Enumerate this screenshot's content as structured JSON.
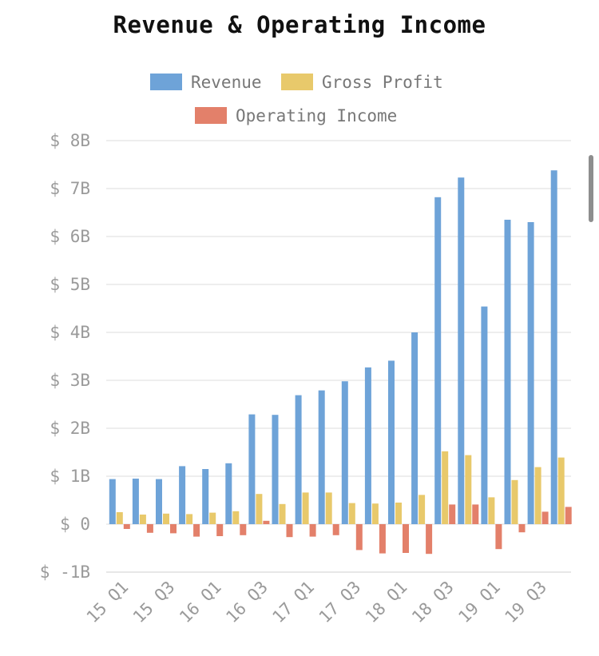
{
  "chart_data": {
    "type": "bar",
    "title": "Revenue & Operating Income",
    "xlabel": "",
    "ylabel": "",
    "ylim": [
      -1,
      8
    ],
    "y_ticks": [
      {
        "value": 8,
        "label": "$ 8B"
      },
      {
        "value": 7,
        "label": "$ 7B"
      },
      {
        "value": 6,
        "label": "$ 6B"
      },
      {
        "value": 5,
        "label": "$ 5B"
      },
      {
        "value": 4,
        "label": "$ 4B"
      },
      {
        "value": 3,
        "label": "$ 3B"
      },
      {
        "value": 2,
        "label": "$ 2B"
      },
      {
        "value": 1,
        "label": "$ 1B"
      },
      {
        "value": 0,
        "label": "$ 0"
      },
      {
        "value": -1,
        "label": "$ -1B"
      }
    ],
    "categories": [
      "15 Q1",
      "15 Q2",
      "15 Q3",
      "15 Q4",
      "16 Q1",
      "16 Q2",
      "16 Q3",
      "16 Q4",
      "17 Q1",
      "17 Q2",
      "17 Q3",
      "17 Q4",
      "18 Q1",
      "18 Q2",
      "18 Q3",
      "18 Q4",
      "19 Q1",
      "19 Q2",
      "19 Q3",
      "19 Q4"
    ],
    "x_tick_labels": [
      "15 Q1",
      "15 Q3",
      "16 Q1",
      "16 Q3",
      "17 Q1",
      "17 Q3",
      "18 Q1",
      "18 Q3",
      "19 Q1",
      "19 Q3"
    ],
    "grid": true,
    "legend_position": "top-center",
    "series": [
      {
        "name": "Revenue",
        "color": "#6ea3d8",
        "values": [
          0.94,
          0.95,
          0.94,
          1.21,
          1.15,
          1.27,
          2.29,
          2.28,
          2.69,
          2.79,
          2.98,
          3.27,
          3.41,
          4.0,
          6.82,
          7.23,
          4.54,
          6.35,
          6.3,
          7.38
        ]
      },
      {
        "name": "Gross Profit",
        "color": "#e8c96b",
        "values": [
          0.25,
          0.2,
          0.22,
          0.21,
          0.24,
          0.27,
          0.63,
          0.42,
          0.66,
          0.66,
          0.44,
          0.43,
          0.45,
          0.61,
          1.52,
          1.44,
          0.56,
          0.92,
          1.19,
          1.39
        ]
      },
      {
        "name": "Operating Income",
        "color": "#e3806a",
        "values": [
          -0.1,
          -0.18,
          -0.19,
          -0.26,
          -0.25,
          -0.23,
          0.07,
          -0.27,
          -0.26,
          -0.23,
          -0.54,
          -0.61,
          -0.6,
          -0.62,
          0.41,
          0.41,
          -0.52,
          -0.17,
          0.26,
          0.36
        ]
      }
    ]
  }
}
